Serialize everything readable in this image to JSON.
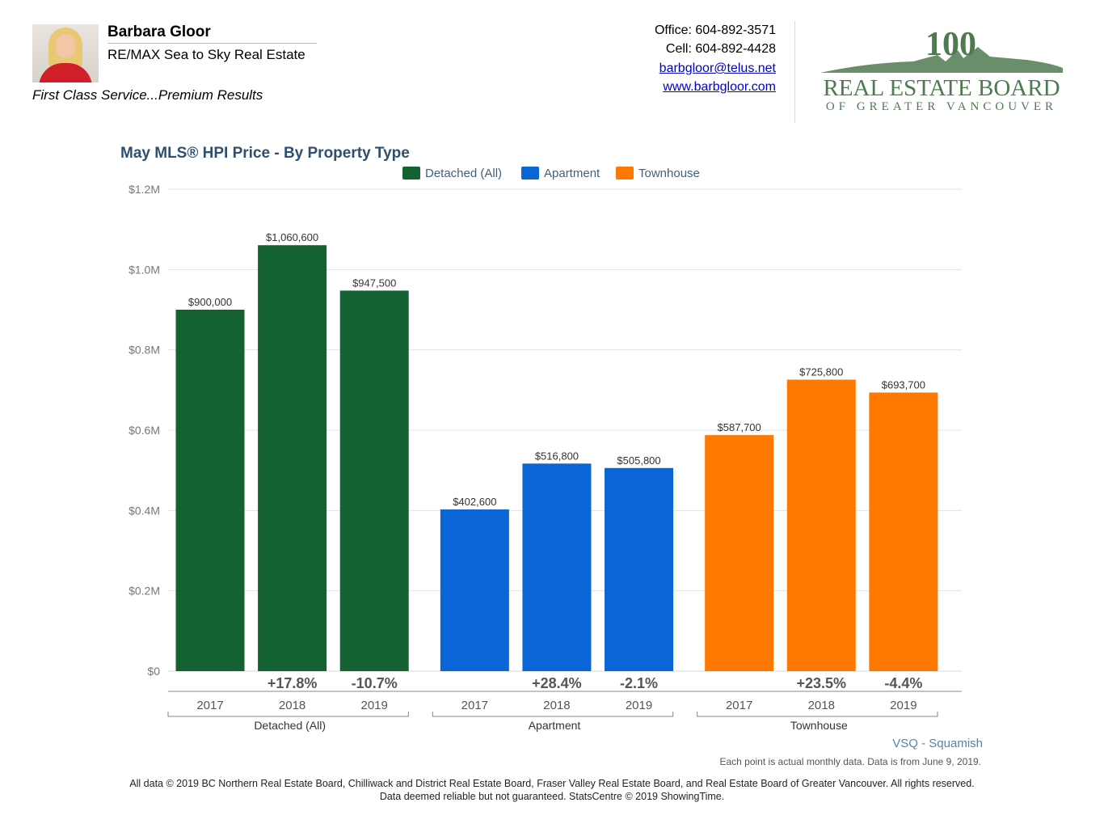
{
  "header": {
    "agent_name": "Barbara Gloor",
    "agent_company": "RE/MAX Sea to Sky Real Estate",
    "tagline": "First Class Service...Premium Results",
    "office": "Office: 604-892-3571",
    "cell": "Cell: 604-892-4428",
    "email": "barbgloor@telus.net",
    "website": "www.barbgloor.com",
    "board_logo": {
      "number": "100",
      "line1": "REAL ESTATE BOARD",
      "line2": "OF GREATER VANCOUVER",
      "color": "#4f7a4f"
    }
  },
  "chart_data": {
    "type": "bar",
    "title": "May MLS® HPI Price - By Property Type",
    "ylim": [
      0,
      1200000
    ],
    "yticks": [
      {
        "value": 0,
        "label": "$0"
      },
      {
        "value": 200000,
        "label": "$0.2M"
      },
      {
        "value": 400000,
        "label": "$0.4M"
      },
      {
        "value": 600000,
        "label": "$0.6M"
      },
      {
        "value": 800000,
        "label": "$0.8M"
      },
      {
        "value": 1000000,
        "label": "$1.0M"
      },
      {
        "value": 1200000,
        "label": "$1.2M"
      }
    ],
    "grid": true,
    "legend_position": "top",
    "categories": [
      "2017",
      "2018",
      "2019"
    ],
    "series": [
      {
        "name": "Detached (All)",
        "color": "#146132",
        "values": [
          900000,
          1060600,
          947500
        ],
        "value_labels": [
          "$900,000",
          "$1,060,600",
          "$947,500"
        ],
        "changes": [
          "",
          "+17.8%",
          "-10.7%"
        ]
      },
      {
        "name": "Apartment",
        "color": "#0a66d6",
        "values": [
          402600,
          516800,
          505800
        ],
        "value_labels": [
          "$402,600",
          "$516,800",
          "$505,800"
        ],
        "changes": [
          "",
          "+28.4%",
          "-2.1%"
        ]
      },
      {
        "name": "Townhouse",
        "color": "#ff7800",
        "values": [
          587700,
          725800,
          693700
        ],
        "value_labels": [
          "$587,700",
          "$725,800",
          "$693,700"
        ],
        "changes": [
          "",
          "+23.5%",
          "-4.4%"
        ]
      }
    ]
  },
  "region": "VSQ - Squamish",
  "note": "Each point is actual monthly data. Data is from June 9, 2019.",
  "footer": {
    "line1": "All data © 2019 BC Northern Real Estate Board, Chilliwack and District Real Estate Board, Fraser Valley Real Estate Board, and Real Estate Board of Greater Vancouver. All rights reserved.",
    "line2": "Data deemed reliable but not guaranteed. StatsCentre © 2019 ShowingTime."
  }
}
